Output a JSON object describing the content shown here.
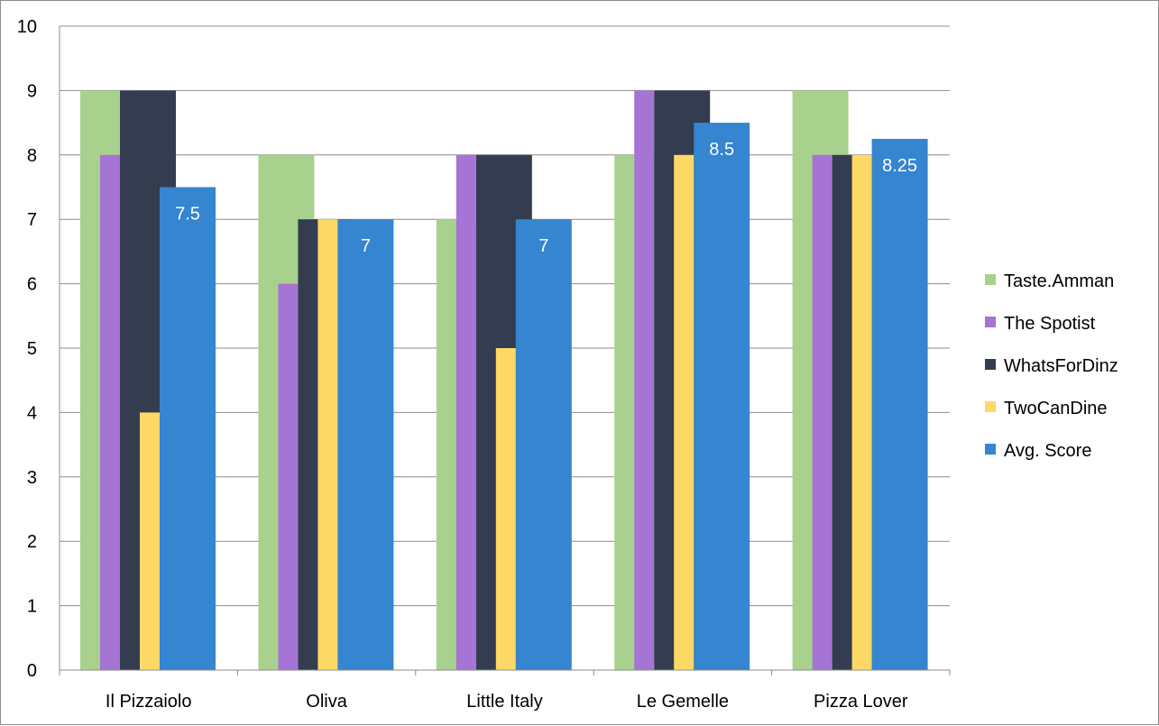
{
  "chart_data": {
    "type": "bar",
    "title": "",
    "xlabel": "",
    "ylabel": "",
    "ylim": [
      0,
      10
    ],
    "yticks": [
      0,
      1,
      2,
      3,
      4,
      5,
      6,
      7,
      8,
      9,
      10
    ],
    "grid": true,
    "legend_position": "right",
    "categories": [
      "Il Pizzaiolo",
      "Oliva",
      "Little Italy",
      "Le Gemelle",
      "Pizza Lover"
    ],
    "series": [
      {
        "name": "Taste.Amman",
        "color": "#a9d18e",
        "values": [
          9,
          8,
          7,
          8,
          9
        ]
      },
      {
        "name": "The Spotist",
        "color": "#a574d5",
        "values": [
          8,
          6,
          8,
          9,
          8
        ]
      },
      {
        "name": "WhatsForDinz",
        "color": "#333d4f",
        "values": [
          9,
          7,
          8,
          9,
          8
        ]
      },
      {
        "name": "TwoCanDine",
        "color": "#ffd966",
        "values": [
          4,
          7,
          5,
          8,
          8
        ]
      },
      {
        "name": "Avg. Score",
        "color": "#3585d0",
        "values": [
          7.5,
          7,
          7,
          8.5,
          8.25
        ]
      }
    ],
    "data_labels": {
      "series": "Avg. Score",
      "values": [
        "7.5",
        "7",
        "7",
        "8.5",
        "8.25"
      ]
    }
  }
}
